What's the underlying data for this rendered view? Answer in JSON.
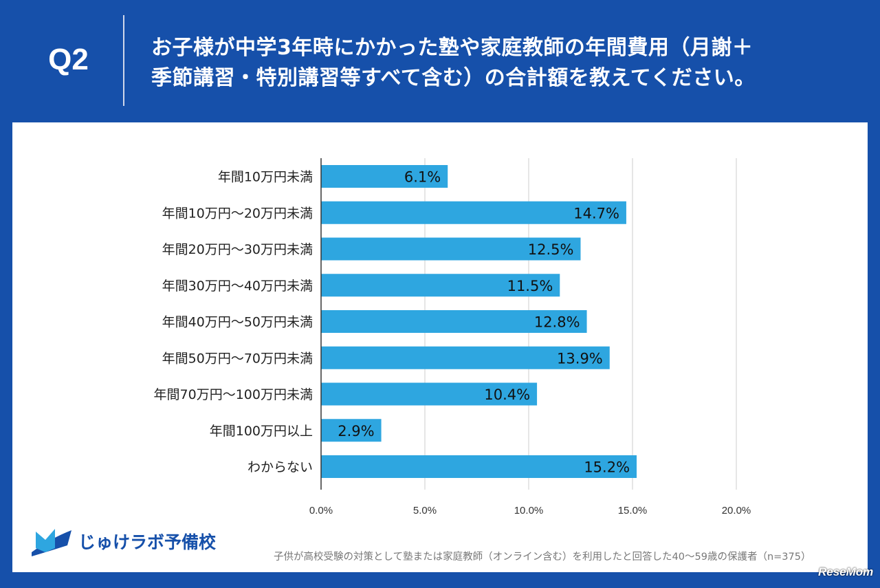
{
  "header": {
    "question": "Q2",
    "title_line1": "お子様が中学3年時にかかった塾や家庭教師の年間費用（月謝＋",
    "title_line2": "季節講習・特別講習等すべて含む）の合計額を教えてください。"
  },
  "chart_data": {
    "type": "bar",
    "orientation": "horizontal",
    "categories": [
      "年間10万円未満",
      "年間10万円～20万円未満",
      "年間20万円～30万円未満",
      "年間30万円～40万円未満",
      "年間40万円～50万円未満",
      "年間50万円～70万円未満",
      "年間70万円～100万円未満",
      "年間100万円以上",
      "わからない"
    ],
    "values": [
      6.1,
      14.7,
      12.5,
      11.5,
      12.8,
      13.9,
      10.4,
      2.9,
      15.2
    ],
    "data_labels": [
      "6.1%",
      "14.7%",
      "12.5%",
      "11.5%",
      "12.8%",
      "13.9%",
      "10.4%",
      "2.9%",
      "15.2%"
    ],
    "xlim": [
      0,
      20
    ],
    "xticks": [
      0,
      5,
      10,
      15,
      20
    ],
    "xtick_labels": [
      "0.0%",
      "5.0%",
      "10.0%",
      "15.0%",
      "20.0%"
    ],
    "grid": true,
    "bar_color": "#2ea6e0"
  },
  "footer": {
    "logo": "じゅけラボ予備校",
    "note": "子供が高校受験の対策として塾または家庭教師（オンライン含む）を利用したと回答した40～59歳の保護者（n=375）",
    "watermark": "ReseMom"
  },
  "colors": {
    "background": "#1650aa",
    "bar": "#2ea6e0"
  }
}
